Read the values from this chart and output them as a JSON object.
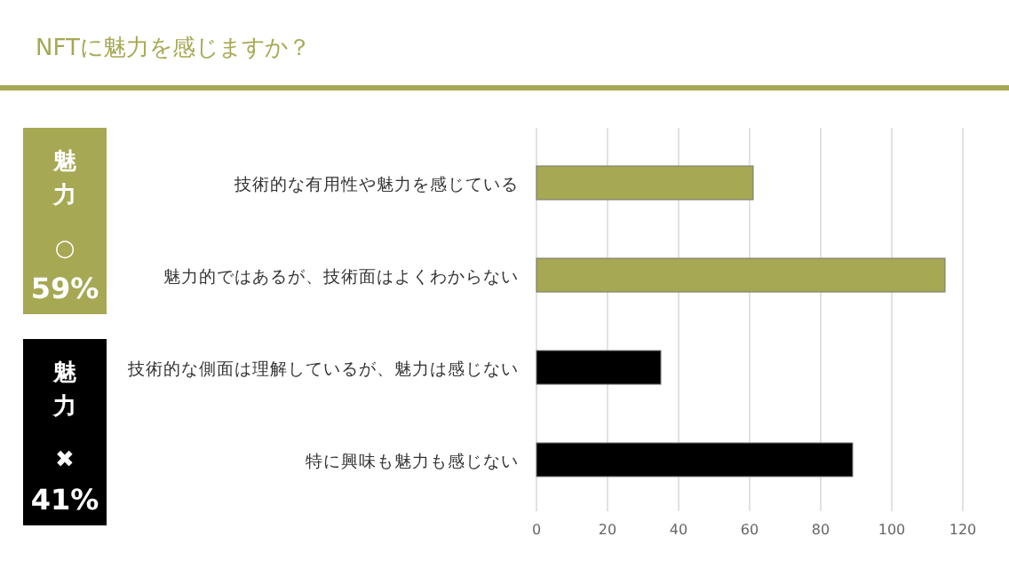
{
  "chart_data": {
    "type": "bar",
    "orientation": "horizontal",
    "title": "NFTに魅力を感じますか？",
    "categories": [
      "技術的な有用性や魅力を感じている",
      "魅力的ではあるが、技術面はよくわからない",
      "技術的な側面は理解しているが、魅力は感じない",
      "特に興味も魅力も感じない"
    ],
    "values": [
      61,
      115,
      35,
      89
    ],
    "colors": [
      "#a6a853",
      "#a6a853",
      "#000000",
      "#000000"
    ],
    "xlim": [
      0,
      120
    ],
    "xticks": [
      0,
      20,
      40,
      60,
      80,
      100,
      120
    ],
    "grid": "x",
    "annotations": [
      "魅力 ○ 59%",
      "魅力 ✖ 41%"
    ]
  }
}
